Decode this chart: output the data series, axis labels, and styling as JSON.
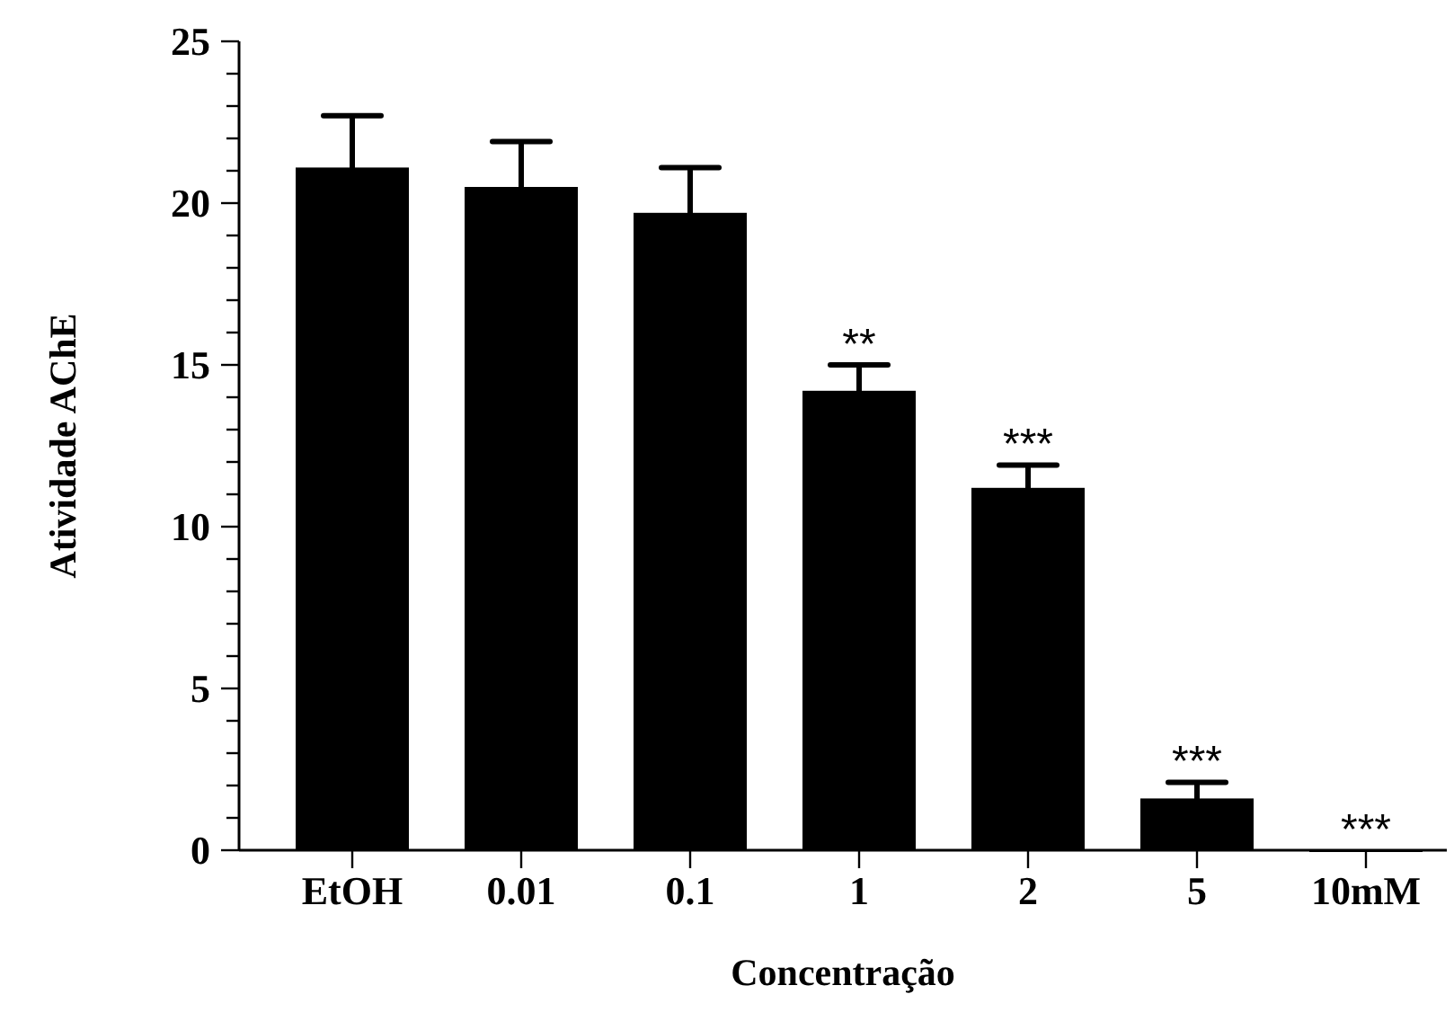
{
  "chart_data": {
    "type": "bar",
    "xlabel": "Concentração",
    "ylabel": "Atividade AChE",
    "categories": [
      "EtOH",
      "0.01",
      "0.1",
      "1",
      "2",
      "5",
      "10mM"
    ],
    "values": [
      21.1,
      20.5,
      19.7,
      14.2,
      11.2,
      1.6,
      0
    ],
    "errors": [
      1.6,
      1.4,
      1.4,
      0.8,
      0.7,
      0.5,
      null
    ],
    "color": "#000000",
    "ylim": [
      0,
      25
    ],
    "yticks": [
      0,
      {
        "value": 1,
        "label": null
      },
      {
        "value": 2,
        "label": null
      },
      {
        "value": 3,
        "label": null
      },
      {
        "value": 4,
        "label": null
      },
      5,
      {
        "value": 6,
        "label": null
      },
      {
        "value": 7,
        "label": null
      },
      {
        "value": 8,
        "label": null
      },
      {
        "value": 9,
        "label": null
      },
      10,
      {
        "value": 11,
        "label": null
      },
      {
        "value": 12,
        "label": null
      },
      {
        "value": 13,
        "label": null
      },
      {
        "value": 14,
        "label": null
      },
      15,
      {
        "value": 16,
        "label": null
      },
      {
        "value": 17,
        "label": null
      },
      {
        "value": 18,
        "label": null
      },
      {
        "value": 19,
        "label": null
      },
      20,
      {
        "value": 21,
        "label": null
      },
      {
        "value": 22,
        "label": null
      },
      {
        "value": 23,
        "label": null
      },
      {
        "value": 24,
        "label": null
      },
      25
    ],
    "annotations": [
      "**",
      "***",
      "***",
      "***"
    ]
  }
}
